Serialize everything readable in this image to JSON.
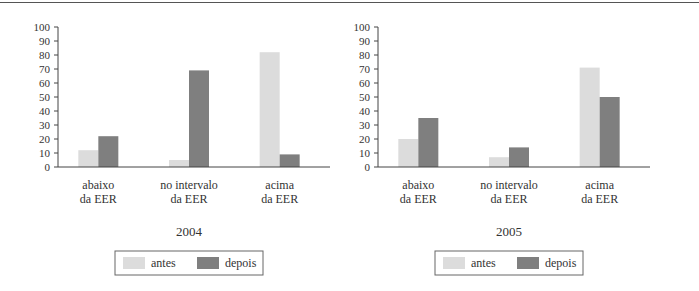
{
  "chart_data": [
    {
      "type": "bar",
      "title": "2004",
      "categories": [
        "abaixo da EER",
        "no intervalo da EER",
        "acima da EER"
      ],
      "series": [
        {
          "name": "antes",
          "color": "#dcdcdc",
          "values": [
            12,
            5,
            82
          ]
        },
        {
          "name": "depois",
          "color": "#7f7f7f",
          "values": [
            22,
            69,
            9
          ]
        }
      ],
      "ylim": [
        0,
        100
      ],
      "yticks": [
        0,
        10,
        20,
        30,
        40,
        50,
        60,
        70,
        80,
        90,
        100
      ],
      "grid": false,
      "legend": "bottom"
    },
    {
      "type": "bar",
      "title": "2005",
      "categories": [
        "abaixo da EER",
        "no intervalo da EER",
        "acima da EER"
      ],
      "series": [
        {
          "name": "antes",
          "color": "#dcdcdc",
          "values": [
            20,
            7,
            71
          ]
        },
        {
          "name": "depois",
          "color": "#7f7f7f",
          "values": [
            35,
            14,
            50
          ]
        }
      ],
      "ylim": [
        0,
        100
      ],
      "yticks": [
        0,
        10,
        20,
        30,
        40,
        50,
        60,
        70,
        80,
        90,
        100
      ],
      "grid": false,
      "legend": "bottom"
    }
  ]
}
